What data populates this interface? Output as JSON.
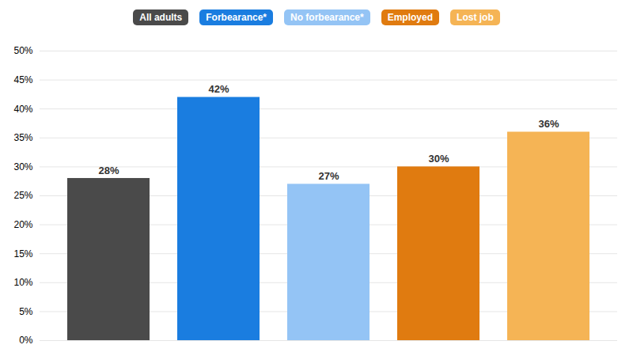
{
  "chart_data": {
    "type": "bar",
    "categories": [
      "All adults",
      "Forbearance*",
      "No forbearance*",
      "Employed",
      "Lost job"
    ],
    "values": [
      28,
      42,
      27,
      30,
      36
    ],
    "value_labels": [
      "28%",
      "42%",
      "27%",
      "30%",
      "36%"
    ],
    "colors": [
      "#4a4a4a",
      "#1a7de0",
      "#94c4f5",
      "#e07b10",
      "#f5b455"
    ],
    "ylim": [
      0,
      50
    ],
    "yticks": [
      {
        "value": 0,
        "label": "0%"
      },
      {
        "value": 5,
        "label": "5%"
      },
      {
        "value": 10,
        "label": "10%"
      },
      {
        "value": 15,
        "label": "15%"
      },
      {
        "value": 20,
        "label": "20%"
      },
      {
        "value": 25,
        "label": "25%"
      },
      {
        "value": 30,
        "label": "30%"
      },
      {
        "value": 35,
        "label": "35%"
      },
      {
        "value": 40,
        "label": "40%"
      },
      {
        "value": 45,
        "label": "45%"
      },
      {
        "value": 50,
        "label": "50%"
      }
    ],
    "grid": true,
    "data_labels": true,
    "tick_labels": "y",
    "legend": "top"
  }
}
